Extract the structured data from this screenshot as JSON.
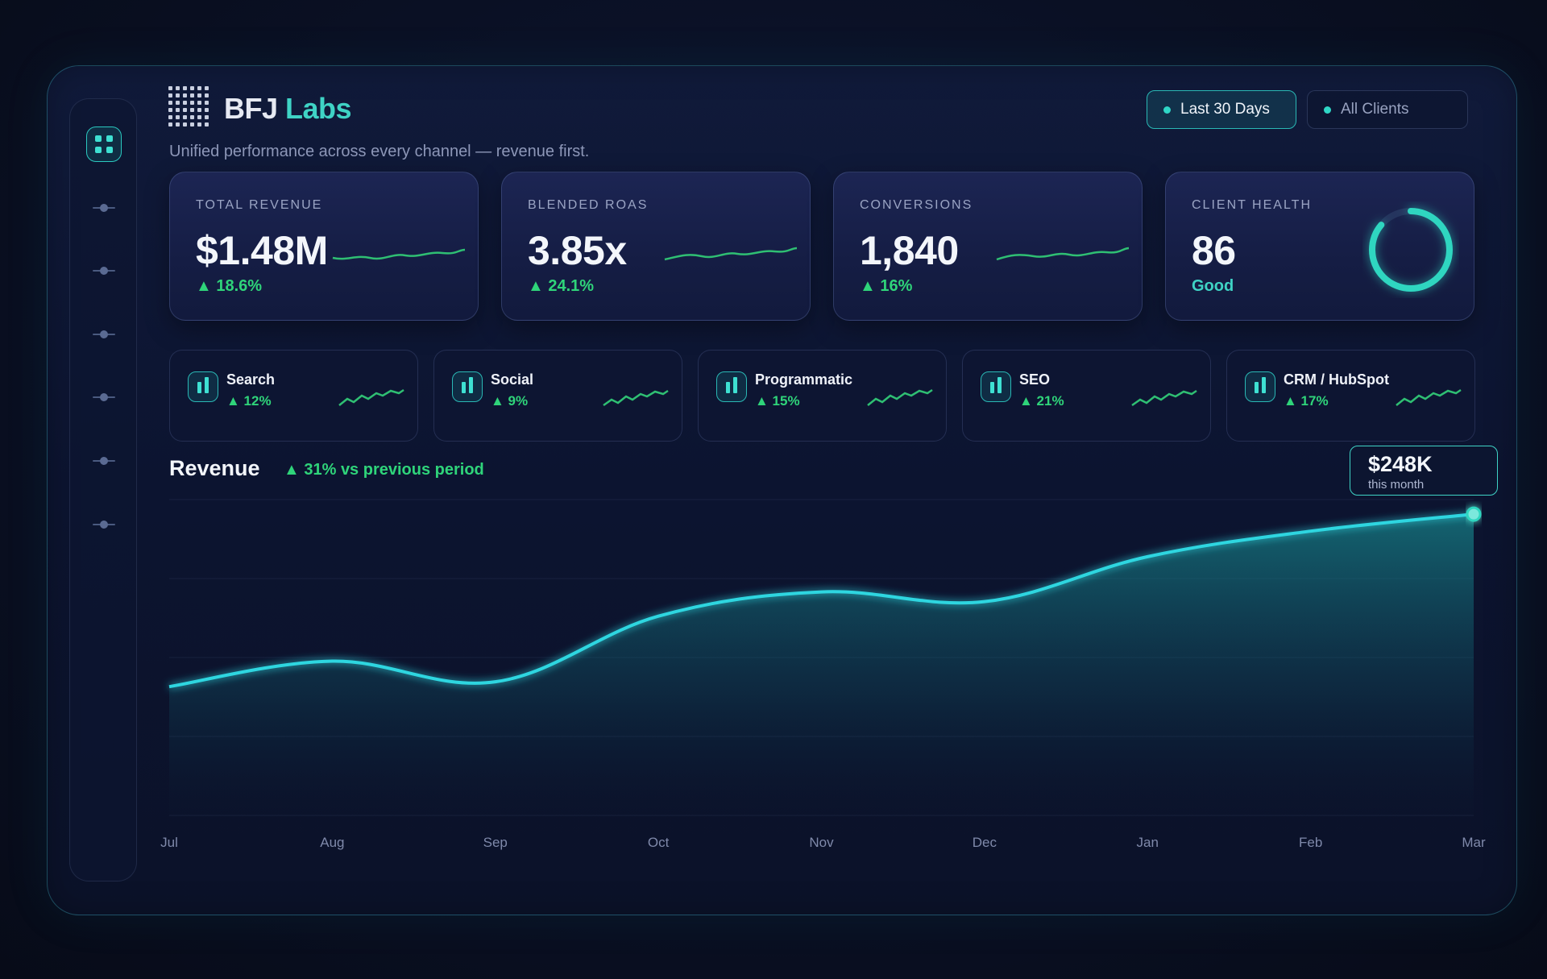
{
  "brand": {
    "name_part1": "BFJ",
    "name_part2": "Labs",
    "subtitle": "Unified performance across every channel — revenue first."
  },
  "filters": {
    "period": "Last 30 Days",
    "clients": "All Clients"
  },
  "kpis": [
    {
      "label": "TOTAL REVENUE",
      "value": "$1.48M",
      "delta": "▲ 18.6%"
    },
    {
      "label": "BLENDED ROAS",
      "value": "3.85x",
      "delta": "▲ 24.1%"
    },
    {
      "label": "CONVERSIONS",
      "value": "1,840",
      "delta": "▲ 16%"
    },
    {
      "label": "CLIENT HEALTH",
      "value": "86",
      "status": "Good",
      "progress": 0.86
    }
  ],
  "channels": [
    {
      "name": "Search",
      "delta": "▲ 12%"
    },
    {
      "name": "Social",
      "delta": "▲ 9%"
    },
    {
      "name": "Programmatic",
      "delta": "▲ 15%"
    },
    {
      "name": "SEO",
      "delta": "▲ 21%"
    },
    {
      "name": "CRM / HubSpot",
      "delta": "▲ 17%"
    }
  ],
  "revenue": {
    "title": "Revenue",
    "delta": "▲ 31% vs previous period",
    "tooltip_value": "$248K",
    "tooltip_label": "this month"
  },
  "chart_data": {
    "type": "area",
    "title": "Revenue",
    "categories": [
      "Jul",
      "Aug",
      "Sep",
      "Oct",
      "Nov",
      "Dec",
      "Jan",
      "Feb",
      "Mar"
    ],
    "values": [
      106,
      127,
      110,
      164,
      184,
      176,
      213,
      234,
      248
    ],
    "ylim": [
      0,
      260
    ],
    "grid": true,
    "colors": {
      "line": "#2fd6e0",
      "fill": "#1aa6a6"
    }
  },
  "colors": {
    "accent": "#3fd3c5",
    "positive": "#2fd47a",
    "background": "#0b1229"
  }
}
